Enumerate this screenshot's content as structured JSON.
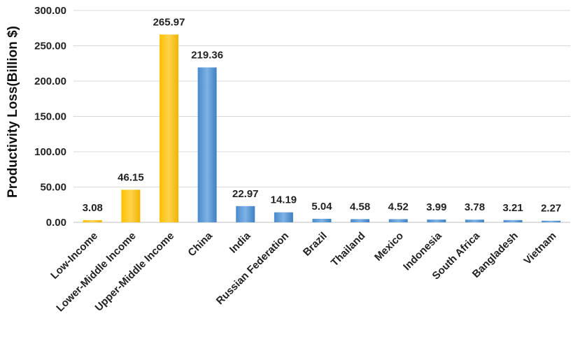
{
  "chart_data": {
    "type": "bar",
    "ylabel": "Productivity Loss(Billion $)",
    "xlabel": "",
    "ylim": [
      0,
      300
    ],
    "yticks": [
      "0.00",
      "50.00",
      "100.00",
      "150.00",
      "200.00",
      "250.00",
      "300.00"
    ],
    "grid": true,
    "categories": [
      "Low-Income",
      "Lower-Middle Income",
      "Upper-Middle Income",
      "China",
      "India",
      "Russian Federation",
      "Brazil",
      "Thailand",
      "Mexico",
      "Indonesia",
      "South Africa",
      "Bangladesh",
      "Vietnam"
    ],
    "values": [
      3.08,
      46.15,
      265.97,
      219.36,
      22.97,
      14.19,
      5.04,
      4.58,
      4.52,
      3.99,
      3.78,
      3.21,
      2.27
    ],
    "data_labels": [
      "3.08",
      "46.15",
      "265.97",
      "219.36",
      "22.97",
      "14.19",
      "5.04",
      "4.58",
      "4.52",
      "3.99",
      "3.78",
      "3.21",
      "2.27"
    ],
    "bar_groups": [
      "income",
      "income",
      "income",
      "country",
      "country",
      "country",
      "country",
      "country",
      "country",
      "country",
      "country",
      "country",
      "country"
    ],
    "colors": {
      "income": "#FFC000",
      "country": "#5B9BD5"
    }
  }
}
